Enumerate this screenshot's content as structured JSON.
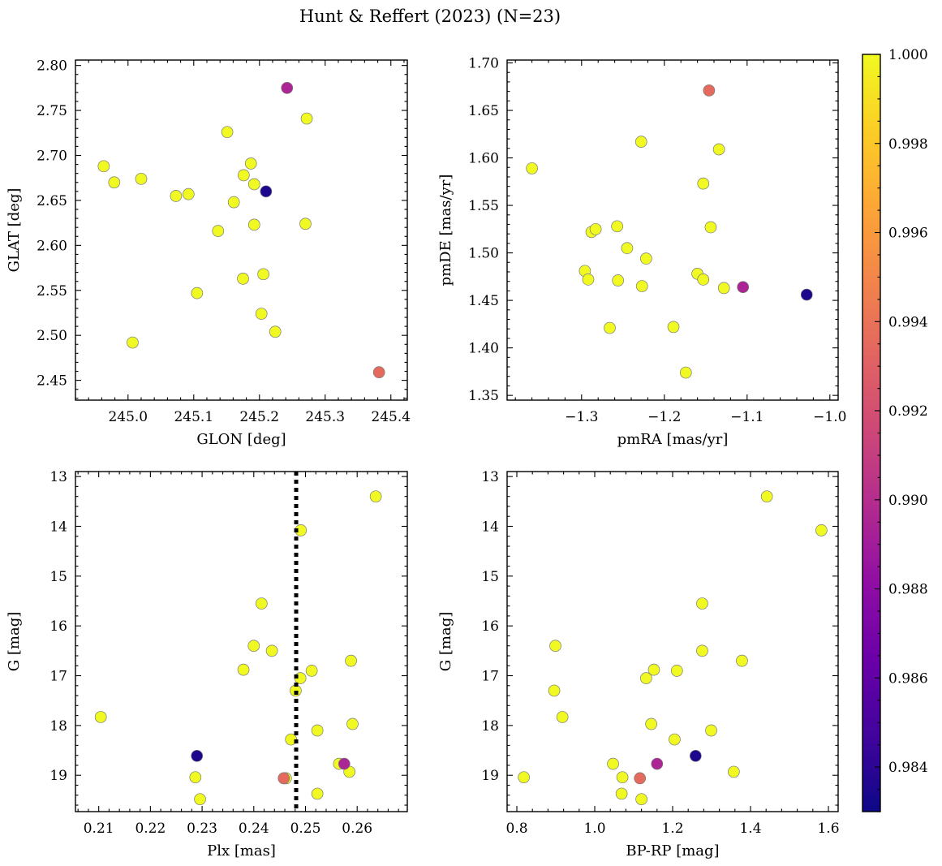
{
  "title": "Hunt & Reffert (2023) (N=23)",
  "colormap": {
    "name": "plasma",
    "min": 0.983,
    "max": 1.0
  },
  "point_style": {
    "edge_color": "#7a7a7a"
  },
  "colorbar": {
    "ticks": [
      0.984,
      0.986,
      0.988,
      0.99,
      0.992,
      0.994,
      0.996,
      0.998,
      1.0
    ],
    "tick_labels": [
      "0.984",
      "0.986",
      "0.988",
      "0.990",
      "0.992",
      "0.994",
      "0.996",
      "0.998",
      "1.000"
    ]
  },
  "chart_data": [
    {
      "type": "scatter",
      "xlabel": "GLON [deg]",
      "ylabel": "GLAT [deg]",
      "xlim": [
        244.92,
        245.425
      ],
      "ylim": [
        2.428,
        2.806
      ],
      "xticks": [
        245.0,
        245.1,
        245.2,
        245.3,
        245.4
      ],
      "xtick_labels": [
        "245.0",
        "245.1",
        "245.2",
        "245.3",
        "245.4"
      ],
      "yticks": [
        2.45,
        2.5,
        2.55,
        2.6,
        2.65,
        2.7,
        2.75,
        2.8
      ],
      "ytick_labels": [
        "2.45",
        "2.50",
        "2.55",
        "2.60",
        "2.65",
        "2.70",
        "2.75",
        "2.80"
      ],
      "invert_y": false,
      "vline": null,
      "points": [
        {
          "x": 245.242,
          "y": 2.775,
          "c": 0.9895
        },
        {
          "x": 245.272,
          "y": 2.741,
          "c": 1.0
        },
        {
          "x": 245.151,
          "y": 2.726,
          "c": 1.0
        },
        {
          "x": 244.963,
          "y": 2.688,
          "c": 1.0
        },
        {
          "x": 245.187,
          "y": 2.691,
          "c": 1.0
        },
        {
          "x": 244.979,
          "y": 2.67,
          "c": 1.0
        },
        {
          "x": 245.02,
          "y": 2.674,
          "c": 1.0
        },
        {
          "x": 245.176,
          "y": 2.678,
          "c": 1.0
        },
        {
          "x": 245.192,
          "y": 2.668,
          "c": 1.0
        },
        {
          "x": 245.21,
          "y": 2.66,
          "c": 0.9835
        },
        {
          "x": 245.073,
          "y": 2.655,
          "c": 1.0
        },
        {
          "x": 245.092,
          "y": 2.657,
          "c": 1.0
        },
        {
          "x": 245.161,
          "y": 2.648,
          "c": 1.0
        },
        {
          "x": 245.192,
          "y": 2.623,
          "c": 1.0
        },
        {
          "x": 245.27,
          "y": 2.624,
          "c": 1.0
        },
        {
          "x": 245.137,
          "y": 2.616,
          "c": 1.0
        },
        {
          "x": 245.206,
          "y": 2.568,
          "c": 1.0
        },
        {
          "x": 245.175,
          "y": 2.563,
          "c": 1.0
        },
        {
          "x": 245.105,
          "y": 2.547,
          "c": 1.0
        },
        {
          "x": 245.203,
          "y": 2.524,
          "c": 1.0
        },
        {
          "x": 245.224,
          "y": 2.504,
          "c": 1.0
        },
        {
          "x": 245.007,
          "y": 2.492,
          "c": 1.0
        },
        {
          "x": 245.382,
          "y": 2.459,
          "c": 0.9935
        }
      ]
    },
    {
      "type": "scatter",
      "xlabel": "pmRA [mas/yr]",
      "ylabel": "pmDE [mas/yr]",
      "xlim": [
        -1.39,
        -0.99
      ],
      "ylim": [
        1.345,
        1.703
      ],
      "xticks": [
        -1.3,
        -1.2,
        -1.1,
        -1.0
      ],
      "xtick_labels": [
        "−1.3",
        "−1.2",
        "−1.1",
        "−1.0"
      ],
      "yticks": [
        1.35,
        1.4,
        1.45,
        1.5,
        1.55,
        1.6,
        1.65,
        1.7
      ],
      "ytick_labels": [
        "1.35",
        "1.40",
        "1.45",
        "1.50",
        "1.55",
        "1.60",
        "1.65",
        "1.70"
      ],
      "invert_y": false,
      "vline": null,
      "points": [
        {
          "x": -1.146,
          "y": 1.671,
          "c": 0.9935
        },
        {
          "x": -1.228,
          "y": 1.617,
          "c": 1.0
        },
        {
          "x": -1.134,
          "y": 1.609,
          "c": 1.0
        },
        {
          "x": -1.36,
          "y": 1.589,
          "c": 1.0
        },
        {
          "x": -1.153,
          "y": 1.573,
          "c": 1.0
        },
        {
          "x": -1.257,
          "y": 1.528,
          "c": 1.0
        },
        {
          "x": -1.144,
          "y": 1.527,
          "c": 1.0
        },
        {
          "x": -1.288,
          "y": 1.522,
          "c": 1.0
        },
        {
          "x": -1.283,
          "y": 1.525,
          "c": 1.0
        },
        {
          "x": -1.245,
          "y": 1.505,
          "c": 1.0
        },
        {
          "x": -1.222,
          "y": 1.494,
          "c": 1.0
        },
        {
          "x": -1.296,
          "y": 1.481,
          "c": 1.0
        },
        {
          "x": -1.16,
          "y": 1.478,
          "c": 1.0
        },
        {
          "x": -1.292,
          "y": 1.472,
          "c": 1.0
        },
        {
          "x": -1.256,
          "y": 1.471,
          "c": 1.0
        },
        {
          "x": -1.153,
          "y": 1.472,
          "c": 1.0
        },
        {
          "x": -1.227,
          "y": 1.465,
          "c": 1.0
        },
        {
          "x": -1.128,
          "y": 1.463,
          "c": 1.0
        },
        {
          "x": -1.105,
          "y": 1.464,
          "c": 0.9895
        },
        {
          "x": -1.028,
          "y": 1.456,
          "c": 0.9835
        },
        {
          "x": -1.266,
          "y": 1.421,
          "c": 1.0
        },
        {
          "x": -1.189,
          "y": 1.422,
          "c": 1.0
        },
        {
          "x": -1.174,
          "y": 1.374,
          "c": 1.0
        }
      ]
    },
    {
      "type": "scatter",
      "xlabel": "Plx [mas]",
      "ylabel": "G [mag]",
      "xlim": [
        0.2055,
        0.2697
      ],
      "ylim": [
        19.73,
        12.9
      ],
      "xticks": [
        0.21,
        0.22,
        0.23,
        0.24,
        0.25,
        0.26
      ],
      "xtick_labels": [
        "0.21",
        "0.22",
        "0.23",
        "0.24",
        "0.25",
        "0.26"
      ],
      "yticks": [
        13,
        14,
        15,
        16,
        17,
        18,
        19
      ],
      "ytick_labels": [
        "13",
        "14",
        "15",
        "16",
        "17",
        "18",
        "19"
      ],
      "invert_y": true,
      "vline": 0.2482,
      "points": [
        {
          "x": 0.2636,
          "y": 13.4,
          "c": 1.0
        },
        {
          "x": 0.2491,
          "y": 14.08,
          "c": 1.0
        },
        {
          "x": 0.2415,
          "y": 15.55,
          "c": 1.0
        },
        {
          "x": 0.24,
          "y": 16.4,
          "c": 1.0
        },
        {
          "x": 0.2435,
          "y": 16.5,
          "c": 1.0
        },
        {
          "x": 0.2588,
          "y": 16.7,
          "c": 1.0
        },
        {
          "x": 0.238,
          "y": 16.88,
          "c": 1.0
        },
        {
          "x": 0.2512,
          "y": 16.9,
          "c": 1.0
        },
        {
          "x": 0.249,
          "y": 17.05,
          "c": 1.0
        },
        {
          "x": 0.2481,
          "y": 17.3,
          "c": 1.0
        },
        {
          "x": 0.2104,
          "y": 17.83,
          "c": 1.0
        },
        {
          "x": 0.2591,
          "y": 17.97,
          "c": 1.0
        },
        {
          "x": 0.2523,
          "y": 18.1,
          "c": 1.0
        },
        {
          "x": 0.2472,
          "y": 18.28,
          "c": 1.0
        },
        {
          "x": 0.229,
          "y": 18.61,
          "c": 0.9835
        },
        {
          "x": 0.2575,
          "y": 18.77,
          "c": 0.9895
        },
        {
          "x": 0.2565,
          "y": 18.77,
          "c": 1.0
        },
        {
          "x": 0.2585,
          "y": 18.93,
          "c": 1.0
        },
        {
          "x": 0.2287,
          "y": 19.04,
          "c": 1.0
        },
        {
          "x": 0.2458,
          "y": 19.06,
          "c": 0.9935
        },
        {
          "x": 0.2462,
          "y": 19.06,
          "c": 1.0
        },
        {
          "x": 0.2523,
          "y": 19.37,
          "c": 1.0
        },
        {
          "x": 0.2296,
          "y": 19.48,
          "c": 1.0
        }
      ]
    },
    {
      "type": "scatter",
      "xlabel": "BP-RP [mag]",
      "ylabel": "G [mag]",
      "xlim": [
        0.775,
        1.625
      ],
      "ylim": [
        19.73,
        12.9
      ],
      "xticks": [
        0.8,
        1.0,
        1.2,
        1.4,
        1.6
      ],
      "xtick_labels": [
        "0.8",
        "1.0",
        "1.2",
        "1.4",
        "1.6"
      ],
      "yticks": [
        13,
        14,
        15,
        16,
        17,
        18,
        19
      ],
      "ytick_labels": [
        "13",
        "14",
        "15",
        "16",
        "17",
        "18",
        "19"
      ],
      "invert_y": true,
      "vline": null,
      "points": [
        {
          "x": 1.442,
          "y": 13.4,
          "c": 1.0
        },
        {
          "x": 1.582,
          "y": 14.08,
          "c": 1.0
        },
        {
          "x": 1.276,
          "y": 15.55,
          "c": 1.0
        },
        {
          "x": 0.899,
          "y": 16.4,
          "c": 1.0
        },
        {
          "x": 1.276,
          "y": 16.5,
          "c": 1.0
        },
        {
          "x": 1.378,
          "y": 16.7,
          "c": 1.0
        },
        {
          "x": 1.152,
          "y": 16.88,
          "c": 1.0
        },
        {
          "x": 1.211,
          "y": 16.9,
          "c": 1.0
        },
        {
          "x": 1.132,
          "y": 17.05,
          "c": 1.0
        },
        {
          "x": 0.896,
          "y": 17.3,
          "c": 1.0
        },
        {
          "x": 0.917,
          "y": 17.83,
          "c": 1.0
        },
        {
          "x": 1.145,
          "y": 17.97,
          "c": 1.0
        },
        {
          "x": 1.299,
          "y": 18.1,
          "c": 1.0
        },
        {
          "x": 1.205,
          "y": 18.28,
          "c": 1.0
        },
        {
          "x": 1.259,
          "y": 18.61,
          "c": 0.9835
        },
        {
          "x": 1.047,
          "y": 18.77,
          "c": 1.0
        },
        {
          "x": 1.16,
          "y": 18.77,
          "c": 0.9895
        },
        {
          "x": 1.357,
          "y": 18.93,
          "c": 1.0
        },
        {
          "x": 0.818,
          "y": 19.04,
          "c": 1.0
        },
        {
          "x": 1.071,
          "y": 19.04,
          "c": 1.0
        },
        {
          "x": 1.116,
          "y": 19.06,
          "c": 0.9935
        },
        {
          "x": 1.069,
          "y": 19.37,
          "c": 1.0
        },
        {
          "x": 1.12,
          "y": 19.48,
          "c": 1.0
        }
      ]
    }
  ]
}
